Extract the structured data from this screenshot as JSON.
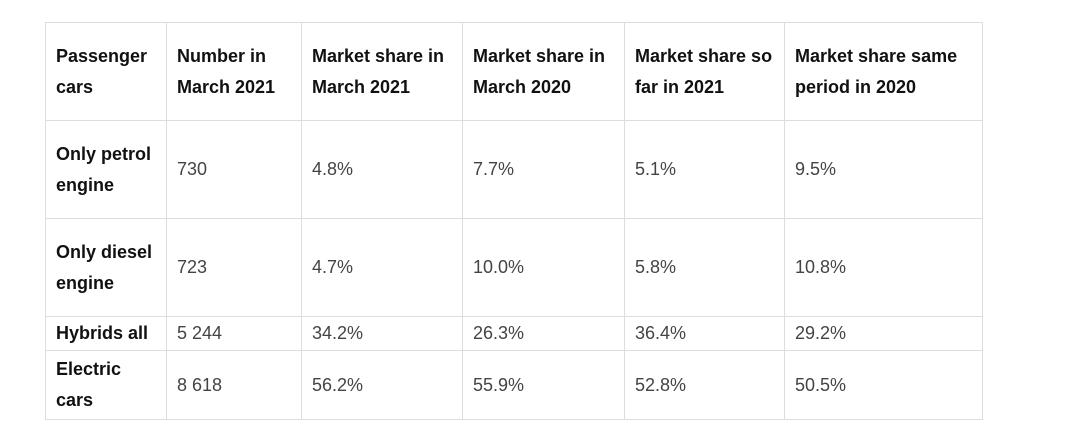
{
  "table": {
    "headers": [
      "Passenger cars",
      "Number in March 2021",
      "Market share in March 2021",
      "Market share in March 2020",
      "Market share so far in 2021",
      "Market share same period in 2020"
    ],
    "rows": [
      {
        "label": "Only petrol engine",
        "values": [
          "730",
          "4.8%",
          "7.7%",
          "5.1%",
          "9.5%"
        ]
      },
      {
        "label": "Only diesel engine",
        "values": [
          "723",
          "4.7%",
          "10.0%",
          "5.8%",
          "10.8%"
        ]
      },
      {
        "label": "Hybrids all",
        "values": [
          "5 244",
          "34.2%",
          "26.3%",
          "36.4%",
          "29.2%"
        ]
      },
      {
        "label": "Electric cars",
        "values": [
          "8 618",
          "56.2%",
          "55.9%",
          "52.8%",
          "50.5%"
        ]
      }
    ]
  }
}
